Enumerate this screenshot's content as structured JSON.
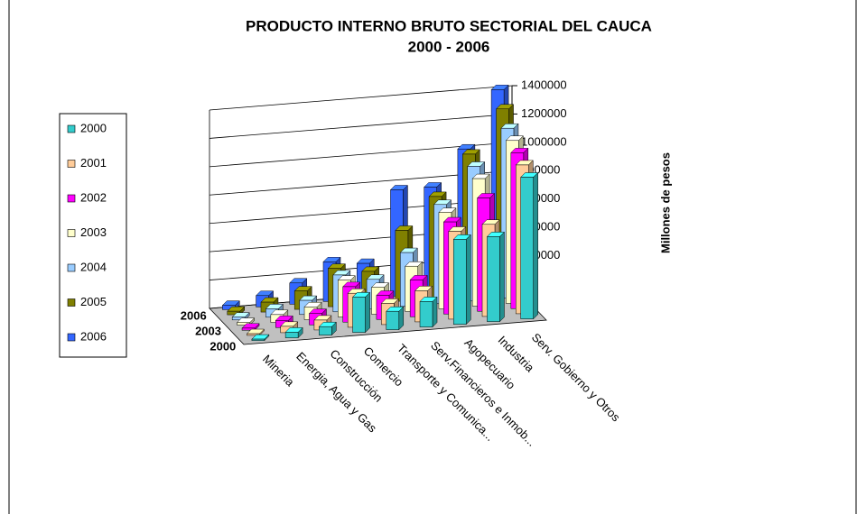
{
  "chart_data": {
    "type": "bar3d",
    "title": "PRODUCTO INTERNO BRUTO SECTORIAL DEL CAUCA",
    "subtitle": "2000 - 2006",
    "y_label": "Millones de pesos",
    "categories": [
      "Mineria",
      "Energia, Agua y Gas",
      "Construcción",
      "Comercio",
      "Transporte y Comunica...",
      "Serv.Financieros e Inmob...",
      "Agopecuario",
      "Industria",
      "Serv. Gobierno y Otros"
    ],
    "series": [
      {
        "name": "2000",
        "color": "#33cccc",
        "values": [
          10000,
          40000,
          60000,
          250000,
          130000,
          180000,
          600000,
          600000,
          1000000
        ]
      },
      {
        "name": "2001",
        "color": "#ffcc99",
        "values": [
          12000,
          45000,
          70000,
          240000,
          150000,
          220000,
          620000,
          650000,
          1050000
        ]
      },
      {
        "name": "2002",
        "color": "#ff00ff",
        "values": [
          15000,
          50000,
          80000,
          250000,
          170000,
          260000,
          650000,
          800000,
          1100000
        ]
      },
      {
        "name": "2003",
        "color": "#ffffcc",
        "values": [
          18000,
          55000,
          90000,
          260000,
          190000,
          320000,
          680000,
          900000,
          1150000
        ]
      },
      {
        "name": "2004",
        "color": "#99ccff",
        "values": [
          20000,
          60000,
          100000,
          260000,
          210000,
          380000,
          700000,
          950000,
          1200000
        ]
      },
      {
        "name": "2005",
        "color": "#808000",
        "values": [
          25000,
          70000,
          130000,
          270000,
          230000,
          500000,
          720000,
          1000000,
          1300000
        ]
      },
      {
        "name": "2006",
        "color": "#3366ff",
        "values": [
          30000,
          80000,
          150000,
          280000,
          250000,
          750000,
          750000,
          1000000,
          1400000
        ]
      }
    ],
    "ylim": [
      0,
      1400000
    ],
    "yticks": [
      0,
      200000,
      400000,
      600000,
      800000,
      1000000,
      1200000,
      1400000
    ],
    "grid": true
  }
}
